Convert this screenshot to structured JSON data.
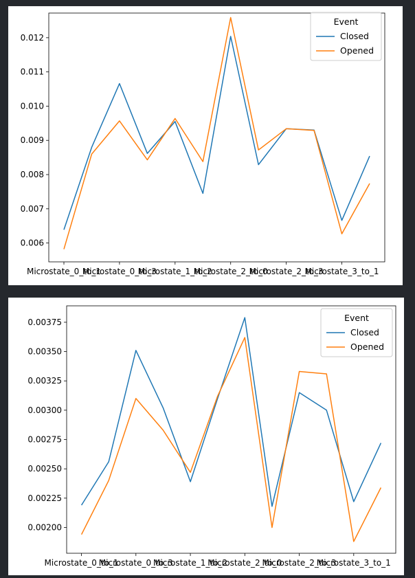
{
  "chart_data": [
    {
      "type": "line",
      "title": "",
      "xlabel": "",
      "ylabel": "",
      "categories": [
        "Microstate_0_to_1",
        "Microstate_0_to_1",
        "Microstate_0_to_3",
        "Microstate_0_to_3",
        "Microstate_1_to_2",
        "Microstate_1_to_2",
        "Microstate_2_to_0",
        "Microstate_2_to_0",
        "Microstate_2_to_3",
        "Microstate_2_to_3",
        "Microstate_3_to_1",
        "Microstate_3_to_1"
      ],
      "x": [
        0,
        1,
        2,
        3,
        4,
        5,
        6,
        7,
        8,
        9,
        10,
        11
      ],
      "xticks": [
        0,
        2,
        4,
        6,
        8,
        10
      ],
      "xtick_labels": [
        "Microstate_0_to_1",
        "Microstate_0_to_3",
        "Microstate_1_to_2",
        "Microstate_2_to_0",
        "Microstate_2_to_3",
        "Microstate_3_to_1"
      ],
      "ylim": [
        0.00545,
        0.01272
      ],
      "yticks": [
        0.006,
        0.007,
        0.008,
        0.009,
        0.01,
        0.011,
        0.012
      ],
      "ytick_labels": [
        "0.006",
        "0.007",
        "0.008",
        "0.009",
        "0.010",
        "0.011",
        "0.012"
      ],
      "grid": false,
      "legend": {
        "title": "Event",
        "placement": "top-right"
      },
      "series": [
        {
          "name": "Closed",
          "color": "#1f77b4",
          "values": [
            0.00639,
            0.0088,
            0.01066,
            0.00862,
            0.00955,
            0.00745,
            0.01204,
            0.00829,
            0.00934,
            0.0093,
            0.00666,
            0.00854
          ]
        },
        {
          "name": "Opened",
          "color": "#ff7f0e",
          "values": [
            0.00582,
            0.0086,
            0.00957,
            0.00843,
            0.00964,
            0.00838,
            0.01259,
            0.00872,
            0.00934,
            0.00929,
            0.00627,
            0.00774
          ]
        }
      ]
    },
    {
      "type": "line",
      "title": "",
      "xlabel": "",
      "ylabel": "",
      "categories": [
        "Microstate_0_to_1",
        "Microstate_0_to_1",
        "Microstate_0_to_3",
        "Microstate_0_to_3",
        "Microstate_1_to_2",
        "Microstate_1_to_2",
        "Microstate_2_to_0",
        "Microstate_2_to_0",
        "Microstate_2_to_3",
        "Microstate_2_to_3",
        "Microstate_3_to_1",
        "Microstate_3_to_1"
      ],
      "x": [
        0,
        1,
        2,
        3,
        4,
        5,
        6,
        7,
        8,
        9,
        10,
        11
      ],
      "xticks": [
        0,
        2,
        4,
        6,
        8,
        10
      ],
      "xtick_labels": [
        "Microstate_0_to_1",
        "Microstate_0_to_3",
        "Microstate_1_to_2",
        "Microstate_2_to_0",
        "Microstate_2_to_3",
        "Microstate_3_to_1"
      ],
      "ylim": [
        0.00178,
        0.00389
      ],
      "yticks": [
        0.002,
        0.00225,
        0.0025,
        0.00275,
        0.003,
        0.00325,
        0.0035,
        0.00375
      ],
      "ytick_labels": [
        "0.00200",
        "0.00225",
        "0.00250",
        "0.00275",
        "0.00300",
        "0.00325",
        "0.00350",
        "0.00375"
      ],
      "grid": false,
      "legend": {
        "title": "Event",
        "placement": "top-right"
      },
      "series": [
        {
          "name": "Closed",
          "color": "#1f77b4",
          "values": [
            0.00219,
            0.00256,
            0.00351,
            0.00302,
            0.00239,
            0.0031,
            0.00379,
            0.00218,
            0.00315,
            0.003,
            0.00222,
            0.00272
          ]
        },
        {
          "name": "Opened",
          "color": "#ff7f0e",
          "values": [
            0.00194,
            0.0024,
            0.0031,
            0.00283,
            0.00247,
            0.00312,
            0.00362,
            0.002,
            0.00333,
            0.00331,
            0.00188,
            0.00234
          ]
        }
      ]
    }
  ]
}
